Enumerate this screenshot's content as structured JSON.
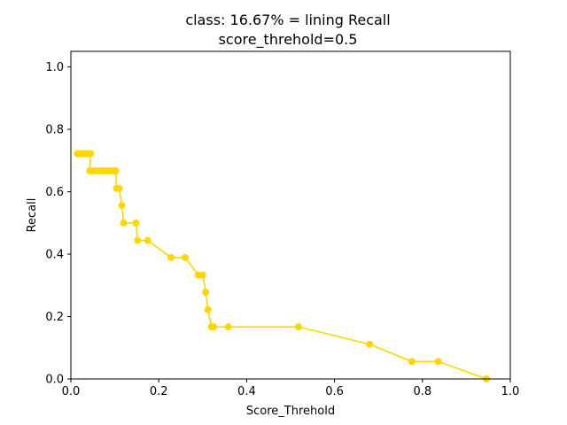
{
  "chart_data": {
    "type": "line",
    "title": "class: 16.67% = lining Recall",
    "subtitle": "score_threhold=0.5",
    "xlabel": "Score_Threhold",
    "ylabel": "Recall",
    "xlim": [
      0.0,
      1.0
    ],
    "ylim": [
      0.0,
      1.05
    ],
    "xticks": [
      "0.0",
      "0.2",
      "0.4",
      "0.6",
      "0.8",
      "1.0"
    ],
    "yticks": [
      "0.0",
      "0.2",
      "0.4",
      "0.6",
      "0.8",
      "1.0"
    ],
    "grid": false,
    "series_color": "#ffd700",
    "series": [
      {
        "x": [
          0.015,
          0.022,
          0.028,
          0.034,
          0.04,
          0.045,
          0.043,
          0.05,
          0.057,
          0.064,
          0.071,
          0.078,
          0.085,
          0.092,
          0.098,
          0.102,
          0.104,
          0.11,
          0.116,
          0.12,
          0.148,
          0.152,
          0.175,
          0.228,
          0.26,
          0.29,
          0.3,
          0.307,
          0.312,
          0.32,
          0.325,
          0.358,
          0.518,
          0.68,
          0.776,
          0.836,
          0.946
        ],
        "y": [
          0.722,
          0.722,
          0.722,
          0.722,
          0.722,
          0.722,
          0.667,
          0.667,
          0.667,
          0.667,
          0.667,
          0.667,
          0.667,
          0.667,
          0.667,
          0.667,
          0.611,
          0.611,
          0.556,
          0.5,
          0.5,
          0.444,
          0.444,
          0.389,
          0.389,
          0.333,
          0.333,
          0.278,
          0.222,
          0.167,
          0.167,
          0.167,
          0.167,
          0.111,
          0.056,
          0.056,
          0.0
        ]
      }
    ]
  }
}
